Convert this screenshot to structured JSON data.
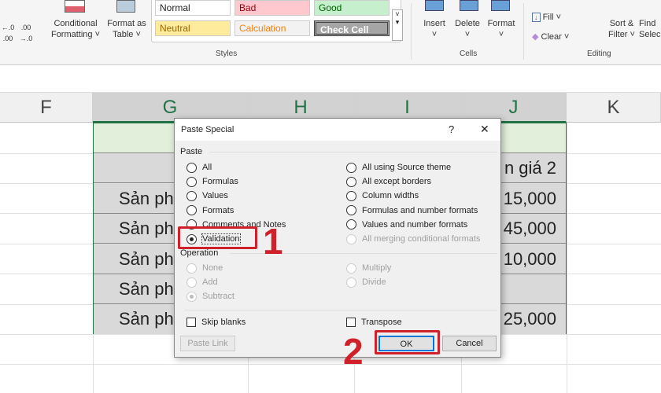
{
  "ribbon": {
    "conditional_formatting": [
      "Conditional",
      "Formatting ˅"
    ],
    "format_as_table": [
      "Format as",
      "Table ˅"
    ],
    "styles": [
      {
        "label": "Normal",
        "bg": "#ffffff",
        "fg": "#222222"
      },
      {
        "label": "Bad",
        "bg": "#ffc7ce",
        "fg": "#9c0006"
      },
      {
        "label": "Good",
        "bg": "#c6efce",
        "fg": "#006100"
      },
      {
        "label": "Neutral",
        "bg": "#ffeb9c",
        "fg": "#9c6500"
      },
      {
        "label": "Calculation",
        "bg": "#f2f2f2",
        "fg": "#fa7d00"
      },
      {
        "label": "Check Cell",
        "bg": "#a5a5a5",
        "fg": "#ffffff"
      }
    ],
    "styles_group": "Styles",
    "insert": "Insert",
    "delete": "Delete",
    "format": "Format",
    "cells_group": "Cells",
    "fill": "Fill ˅",
    "clear": "Clear ˅",
    "sort_filter": [
      "Sort &",
      "Filter ˅"
    ],
    "find_select": [
      "Find",
      "Selec"
    ],
    "editing_group": "Editing",
    "decimal_icons": [
      "←.0 .00",
      ".00 →.0"
    ]
  },
  "columns": [
    "F",
    "G",
    "H",
    "I",
    "J",
    "K"
  ],
  "table": {
    "g_col": [
      "",
      "",
      "Sản ph",
      "Sản ph",
      "Sản ph",
      "Sản ph",
      "Sản ph"
    ],
    "j_col": [
      "",
      "n giá 2",
      "15,000",
      "45,000",
      "10,000",
      "",
      "25,000"
    ]
  },
  "dialog": {
    "title": "Paste Special",
    "help": "?",
    "close": "✕",
    "paste_label": "Paste",
    "paste_left": [
      {
        "label": "All",
        "checked": false
      },
      {
        "label": "Formulas",
        "checked": false
      },
      {
        "label": "Values",
        "checked": false
      },
      {
        "label": "Formats",
        "checked": false
      },
      {
        "label": "Comments and Notes",
        "checked": false
      },
      {
        "label": "Validation",
        "checked": true
      }
    ],
    "paste_right": [
      {
        "label": "All using Source theme",
        "disabled": false
      },
      {
        "label": "All except borders",
        "disabled": false
      },
      {
        "label": "Column widths",
        "disabled": false
      },
      {
        "label": "Formulas and number formats",
        "disabled": false
      },
      {
        "label": "Values and number formats",
        "disabled": false
      },
      {
        "label": "All merging conditional formats",
        "disabled": true
      }
    ],
    "operation_label": "Operation",
    "op_left": [
      {
        "label": "None",
        "checked": false
      },
      {
        "label": "Add",
        "checked": false
      },
      {
        "label": "Subtract",
        "checked": true
      }
    ],
    "op_right": [
      {
        "label": "Multiply"
      },
      {
        "label": "Divide"
      }
    ],
    "skip_blanks": "Skip blanks",
    "transpose": "Transpose",
    "paste_link": "Paste Link",
    "ok": "OK",
    "cancel": "Cancel"
  },
  "annotations": {
    "step1": "1",
    "step2": "2",
    "highlight_color": "#d0202a"
  }
}
